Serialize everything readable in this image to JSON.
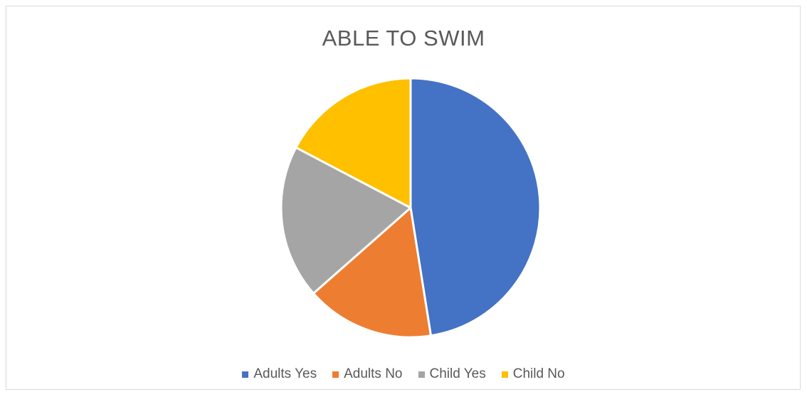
{
  "chart_data": {
    "type": "pie",
    "title": "ABLE TO SWIM",
    "categories": [
      "Adults Yes",
      "Adults No",
      "Child Yes",
      "Child No"
    ],
    "values": [
      47.5,
      16.0,
      19.2,
      17.3
    ],
    "colors": [
      "#4472C4",
      "#ED7D31",
      "#A5A5A5",
      "#FFC000"
    ],
    "legend_position": "bottom"
  }
}
